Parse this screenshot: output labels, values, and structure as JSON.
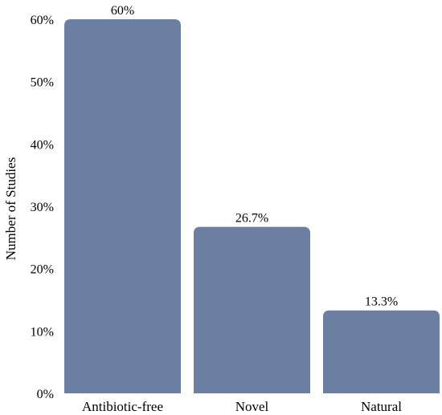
{
  "chart_data": {
    "type": "bar",
    "title": "",
    "xlabel": "",
    "ylabel": "Number of Studies",
    "categories": [
      "Antibiotic-free",
      "Novel",
      "Natural"
    ],
    "values": [
      60,
      26.7,
      13.3
    ],
    "value_labels": [
      "60%",
      "26.7%",
      "13.3%"
    ],
    "ylim": [
      0,
      60
    ],
    "y_ticks": [
      0,
      10,
      20,
      30,
      40,
      50,
      60
    ],
    "y_tick_labels": [
      "0%",
      "10%",
      "20%",
      "30%",
      "40%",
      "50%",
      "60%"
    ],
    "grid": false,
    "legend": "none",
    "bar_color": "#6a7fa1"
  }
}
